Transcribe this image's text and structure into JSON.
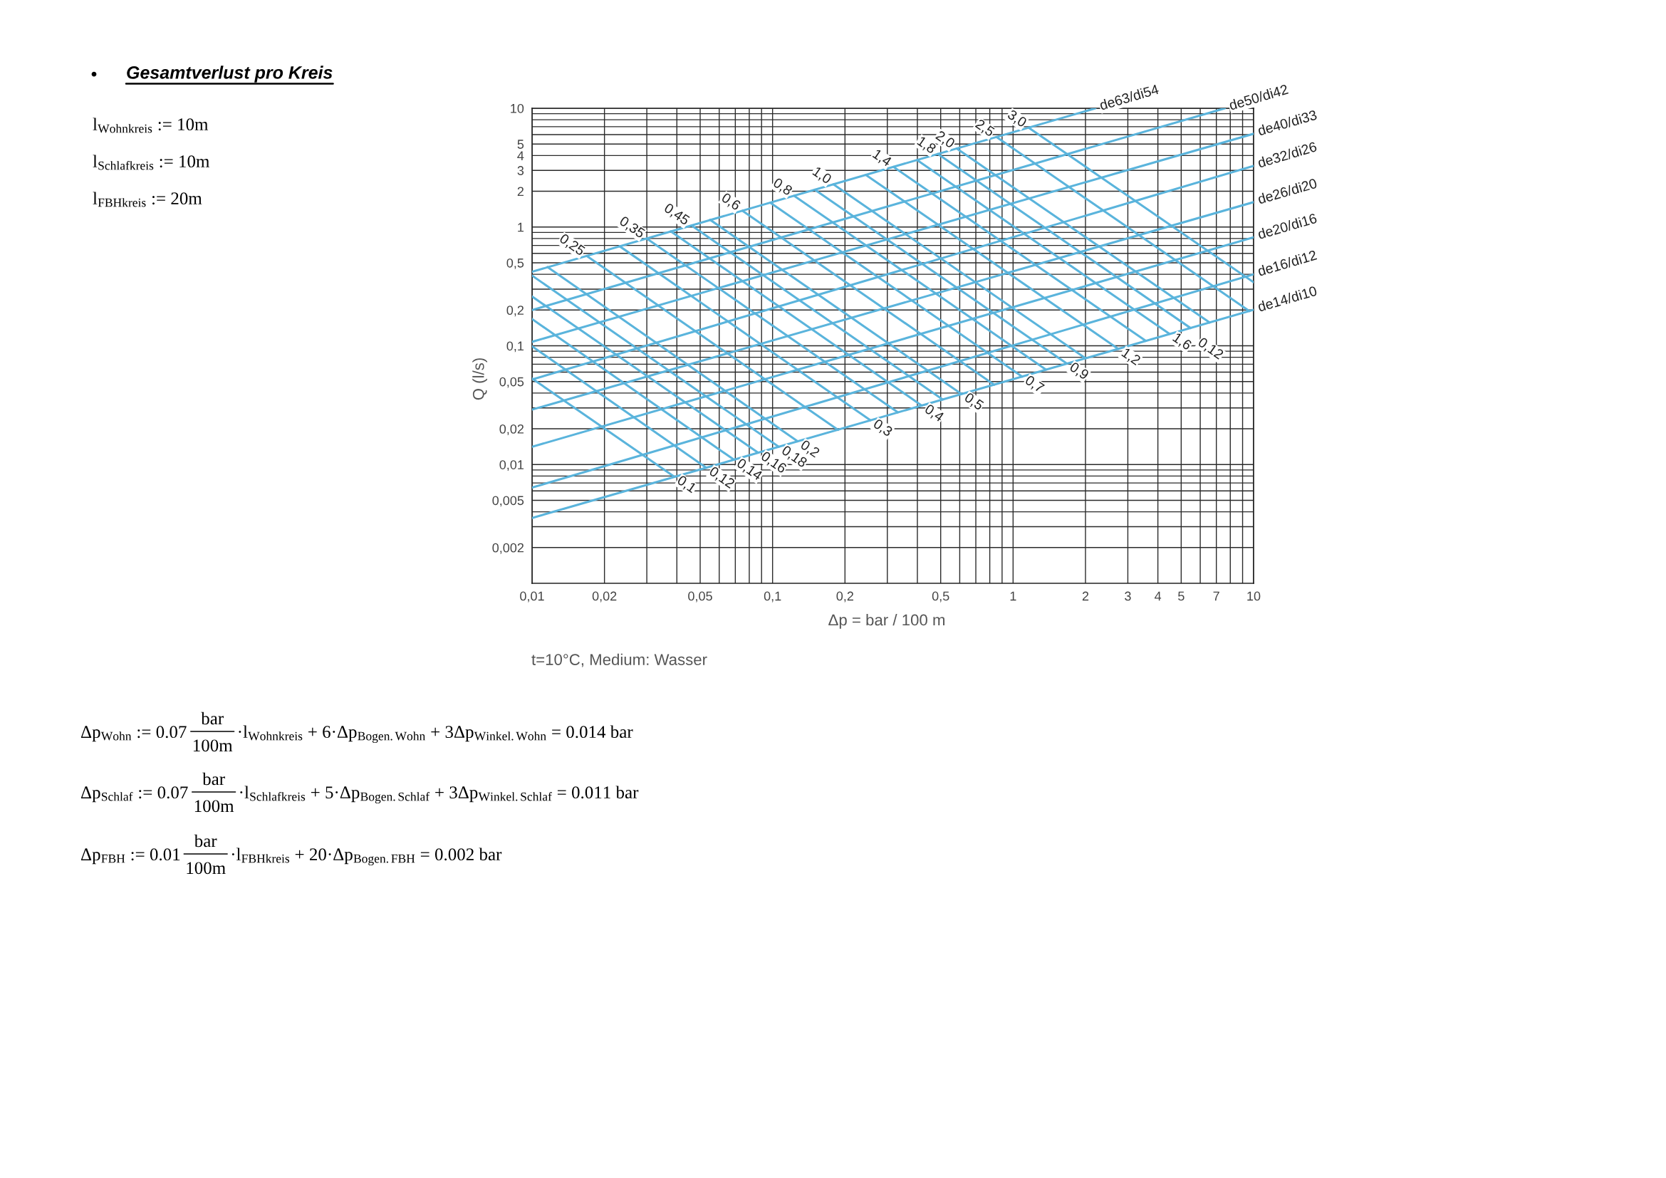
{
  "chart_data": {
    "type": "line",
    "title": "Gesamtverlust pro Kreis",
    "xlabel": "Δp = bar / 100 m",
    "ylabel": "Q (l/s)",
    "log": "xy",
    "grid": true,
    "xlim": [
      0.01,
      10
    ],
    "ylim": [
      0.001,
      10
    ],
    "xticks": [
      {
        "value": 0.01,
        "label": "0,01"
      },
      {
        "value": 0.02,
        "label": "0,02"
      },
      {
        "value": 0.03,
        "label": null
      },
      {
        "value": 0.04,
        "label": null
      },
      {
        "value": 0.05,
        "label": "0,05"
      },
      {
        "value": 0.06,
        "label": null
      },
      {
        "value": 0.07,
        "label": null
      },
      {
        "value": 0.08,
        "label": null
      },
      {
        "value": 0.09,
        "label": null
      },
      {
        "value": 0.1,
        "label": "0,1"
      },
      {
        "value": 0.2,
        "label": "0,2"
      },
      {
        "value": 0.3,
        "label": null
      },
      {
        "value": 0.4,
        "label": null
      },
      {
        "value": 0.5,
        "label": "0,5"
      },
      {
        "value": 0.6,
        "label": null
      },
      {
        "value": 0.7,
        "label": null
      },
      {
        "value": 0.8,
        "label": null
      },
      {
        "value": 0.9,
        "label": null
      },
      1,
      2,
      3,
      4,
      5,
      {
        "value": 6,
        "label": null
      },
      7,
      {
        "value": 8,
        "label": null
      },
      {
        "value": 9,
        "label": null
      },
      10
    ],
    "yticks": [
      {
        "value": 0.002,
        "label": "0,002"
      },
      {
        "value": 0.003,
        "label": null
      },
      {
        "value": 0.004,
        "label": null
      },
      {
        "value": 0.005,
        "label": "0,005"
      },
      {
        "value": 0.006,
        "label": null
      },
      {
        "value": 0.007,
        "label": null
      },
      {
        "value": 0.008,
        "label": null
      },
      {
        "value": 0.009,
        "label": null
      },
      {
        "value": 0.01,
        "label": "0,01"
      },
      {
        "value": 0.02,
        "label": "0,02"
      },
      {
        "value": 0.03,
        "label": null
      },
      {
        "value": 0.04,
        "label": null
      },
      {
        "value": 0.05,
        "label": "0,05"
      },
      {
        "value": 0.06,
        "label": null
      },
      {
        "value": 0.07,
        "label": null
      },
      {
        "value": 0.08,
        "label": null
      },
      {
        "value": 0.09,
        "label": null
      },
      {
        "value": 0.1,
        "label": "0,1"
      },
      {
        "value": 0.2,
        "label": "0,2"
      },
      {
        "value": 0.3,
        "label": null
      },
      {
        "value": 0.4,
        "label": null
      },
      {
        "value": 0.5,
        "label": "0,5"
      },
      {
        "value": 0.6,
        "label": null
      },
      {
        "value": 0.7,
        "label": null
      },
      {
        "value": 0.8,
        "label": null
      },
      {
        "value": 0.9,
        "label": null
      },
      1,
      2,
      3,
      4,
      5,
      {
        "value": 6,
        "label": null
      },
      {
        "value": 7,
        "label": null
      },
      {
        "value": 8,
        "label": null
      },
      {
        "value": 9,
        "label": null
      },
      10
    ],
    "series": [
      {
        "name": "de63/di54",
        "color": "#5ab4dc",
        "x": [
          2.2,
          0.01
        ],
        "values": [
          10,
          0.42
        ]
      },
      {
        "name": "de50/di42",
        "color": "#5ab4dc",
        "x": [
          7.6,
          0.01
        ],
        "values": [
          10,
          0.2
        ]
      },
      {
        "name": "de40/di33",
        "color": "#5ab4dc",
        "x": [
          10,
          0.01
        ],
        "values": [
          6.1,
          0.108
        ]
      },
      {
        "name": "de32/di26",
        "color": "#5ab4dc",
        "x": [
          10,
          0.01
        ],
        "values": [
          3.27,
          0.052
        ]
      },
      {
        "name": "de26/di20",
        "color": "#5ab4dc",
        "x": [
          10,
          0.01
        ],
        "values": [
          1.62,
          0.029
        ]
      },
      {
        "name": "de20/di16",
        "color": "#5ab4dc",
        "x": [
          10,
          0.01
        ],
        "values": [
          0.82,
          0.0141
        ]
      },
      {
        "name": "de16/di12",
        "color": "#5ab4dc",
        "x": [
          10,
          0.01
        ],
        "values": [
          0.4,
          0.0064
        ]
      },
      {
        "name": "de14/di10",
        "color": "#5ab4dc",
        "x": [
          10,
          0.01
        ],
        "values": [
          0.201,
          0.00355
        ]
      },
      {
        "name": "0,1",
        "color": "#5ab4dc",
        "x": [
          0.039,
          0.01
        ],
        "values": [
          0.0079,
          0.053
        ]
      },
      {
        "name": "0,12",
        "color": "#5ab4dc",
        "x": [
          0.053,
          0.01
        ],
        "values": [
          0.0094,
          0.099
        ]
      },
      {
        "name": "0,14",
        "color": "#5ab4dc",
        "x": [
          0.069,
          0.01
        ],
        "values": [
          0.011,
          0.168
        ]
      },
      {
        "name": "0,16",
        "color": "#5ab4dc",
        "x": [
          0.087,
          0.01
        ],
        "values": [
          0.0126,
          0.26
        ]
      },
      {
        "name": "0,18",
        "color": "#5ab4dc",
        "x": [
          0.106,
          0.01
        ],
        "values": [
          0.0141,
          0.39
        ]
      },
      {
        "name": "0,2",
        "color": "#5ab4dc",
        "x": [
          0.127,
          0.0116
        ],
        "values": [
          0.0157,
          0.46
        ]
      },
      {
        "name": "0,25",
        "color": "#5ab4dc",
        "x": [
          0.0169,
          0.187
        ],
        "values": [
          0.57,
          0.0196
        ]
      },
      {
        "name": "0,3",
        "color": "#5ab4dc",
        "x": [
          0.255,
          0.0231
        ],
        "values": [
          0.0236,
          0.69
        ]
      },
      {
        "name": "0,35",
        "color": "#5ab4dc",
        "x": [
          0.03,
          0.332
        ],
        "values": [
          0.8,
          0.0275
        ]
      },
      {
        "name": "0,4",
        "color": "#5ab4dc",
        "x": [
          0.417,
          0.0377
        ],
        "values": [
          0.0314,
          0.92
        ]
      },
      {
        "name": "0,45",
        "color": "#5ab4dc",
        "x": [
          0.046,
          0.51
        ],
        "values": [
          1.03,
          0.0353
        ]
      },
      {
        "name": "0,5",
        "color": "#5ab4dc",
        "x": [
          0.61,
          0.055
        ],
        "values": [
          0.0393,
          1.15
        ]
      },
      {
        "name": "0,6",
        "color": "#5ab4dc",
        "x": [
          0.075,
          0.835
        ],
        "values": [
          1.37,
          0.047
        ]
      },
      {
        "name": "0,7",
        "color": "#5ab4dc",
        "x": [
          1.09,
          0.098
        ],
        "values": [
          0.055,
          1.6
        ]
      },
      {
        "name": "0,8",
        "color": "#5ab4dc",
        "x": [
          0.123,
          1.37
        ],
        "values": [
          1.83,
          0.063
        ]
      },
      {
        "name": "0,9",
        "color": "#5ab4dc",
        "x": [
          1.67,
          0.15
        ],
        "values": [
          0.071,
          2.06
        ]
      },
      {
        "name": "1,0",
        "color": "#5ab4dc",
        "x": [
          0.179,
          2.0
        ],
        "values": [
          2.29,
          0.0785
        ]
      },
      {
        "name": "1,2",
        "color": "#5ab4dc",
        "x": [
          2.74,
          0.244
        ],
        "values": [
          0.094,
          2.75
        ]
      },
      {
        "name": "1,4",
        "color": "#5ab4dc",
        "x": [
          0.318,
          3.56
        ],
        "values": [
          3.21,
          0.11
        ]
      },
      {
        "name": "1,6",
        "color": "#5ab4dc",
        "x": [
          4.47,
          0.399
        ],
        "values": [
          0.126,
          3.66
        ]
      },
      {
        "name": "1,8",
        "color": "#5ab4dc",
        "x": [
          0.487,
          5.47
        ],
        "values": [
          4.12,
          0.141
        ]
      },
      {
        "name": "2,0",
        "color": "#5ab4dc",
        "x": [
          0.583,
          6.56
        ],
        "values": [
          4.58,
          0.157
        ]
      },
      {
        "name": "2,5",
        "color": "#5ab4dc",
        "x": [
          0.852,
          9.6
        ],
        "values": [
          5.73,
          0.196
        ]
      },
      {
        "name": "3,0",
        "color": "#5ab4dc",
        "x": [
          1.16,
          10
        ],
        "values": [
          6.87,
          0.343
        ]
      }
    ],
    "annotations": [
      "•",
      "l$_{Wohnkreis}$ := 10m",
      "l$_{Schlafkreis}$ := 10m",
      "l$_{FBHkreis}$ := 20m",
      "t=10°C, Medium: Wasser",
      "Δp$_{Wohn}$ := 0.07",
      "bar",
      "100m",
      "·l$_{Wohnkreis}$ + 6·Δp$_{Bogen.Wohn}$ + 3Δp$_{Winkel.Wohn}$ = 0.014 bar",
      "Δp$_{Schlaf}$ := 0.07",
      "bar",
      "100m",
      "·l$_{Schlafkreis}$ + 5·Δp$_{Bogen.Schlaf}$ + 3Δp$_{Winkel.Schlaf}$ = 0.011 bar",
      "Δp$_{FBH}$ := 0.01",
      "bar",
      "100m",
      "·l$_{FBHkreis}$ + 20·Δp$_{Bogen.FBH}$ = 0.002 bar",
      {
        "text": "0,12",
        "x": 6.6,
        "y": 0.16
      }
    ]
  }
}
